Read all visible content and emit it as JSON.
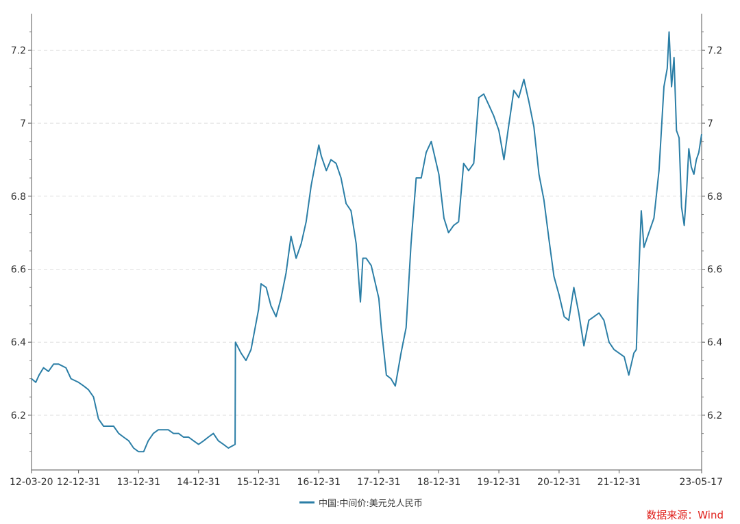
{
  "chart_data": {
    "type": "line",
    "ylim": [
      6.05,
      7.3
    ],
    "yticks": [
      6.2,
      6.4,
      6.6,
      6.8,
      7.0,
      7.2
    ],
    "ytick_labels": [
      "6.2",
      "6.4",
      "6.6",
      "6.8",
      "7",
      "7.2"
    ],
    "xlim": [
      "2012-03-20",
      "2023-05-17"
    ],
    "xticks": [
      "2012-03-20",
      "2012-12-31",
      "2013-12-31",
      "2014-12-31",
      "2015-12-31",
      "2016-12-31",
      "2017-12-31",
      "2018-12-31",
      "2019-12-31",
      "2020-12-31",
      "2021-12-31",
      "2023-05-17"
    ],
    "xtick_labels": [
      "12-03-20",
      "12-12-31",
      "13-12-31",
      "14-12-31",
      "15-12-31",
      "16-12-31",
      "17-12-31",
      "18-12-31",
      "19-12-31",
      "20-12-31",
      "21-12-31",
      "23-05-17"
    ],
    "grid": "horizontal-dashed",
    "legend_position": "bottom",
    "series": [
      {
        "name": "中国:中间价:美元兑人民币",
        "color": "#2b7ea6",
        "points": [
          [
            "2012-03-20",
            6.3
          ],
          [
            "2012-04-15",
            6.29
          ],
          [
            "2012-05-05",
            6.31
          ],
          [
            "2012-06-01",
            6.33
          ],
          [
            "2012-07-01",
            6.32
          ],
          [
            "2012-08-01",
            6.34
          ],
          [
            "2012-09-01",
            6.34
          ],
          [
            "2012-10-15",
            6.33
          ],
          [
            "2012-11-15",
            6.3
          ],
          [
            "2012-12-31",
            6.29
          ],
          [
            "2013-02-01",
            6.28
          ],
          [
            "2013-03-01",
            6.27
          ],
          [
            "2013-04-01",
            6.25
          ],
          [
            "2013-05-01",
            6.19
          ],
          [
            "2013-06-01",
            6.17
          ],
          [
            "2013-07-01",
            6.17
          ],
          [
            "2013-08-01",
            6.17
          ],
          [
            "2013-09-01",
            6.15
          ],
          [
            "2013-10-01",
            6.14
          ],
          [
            "2013-11-01",
            6.13
          ],
          [
            "2013-12-01",
            6.11
          ],
          [
            "2013-12-31",
            6.1
          ],
          [
            "2014-01-31",
            6.1
          ],
          [
            "2014-02-28",
            6.13
          ],
          [
            "2014-03-31",
            6.15
          ],
          [
            "2014-04-30",
            6.16
          ],
          [
            "2014-05-31",
            6.16
          ],
          [
            "2014-06-30",
            6.16
          ],
          [
            "2014-07-31",
            6.15
          ],
          [
            "2014-08-31",
            6.15
          ],
          [
            "2014-09-30",
            6.14
          ],
          [
            "2014-10-31",
            6.14
          ],
          [
            "2014-11-30",
            6.13
          ],
          [
            "2014-12-31",
            6.12
          ],
          [
            "2015-01-31",
            6.13
          ],
          [
            "2015-02-28",
            6.14
          ],
          [
            "2015-03-31",
            6.15
          ],
          [
            "2015-04-30",
            6.13
          ],
          [
            "2015-05-31",
            6.12
          ],
          [
            "2015-06-30",
            6.11
          ],
          [
            "2015-08-10",
            6.12
          ],
          [
            "2015-08-12",
            6.4
          ],
          [
            "2015-09-15",
            6.37
          ],
          [
            "2015-10-15",
            6.35
          ],
          [
            "2015-11-15",
            6.38
          ],
          [
            "2015-12-31",
            6.49
          ],
          [
            "2016-01-15",
            6.56
          ],
          [
            "2016-02-15",
            6.55
          ],
          [
            "2016-03-15",
            6.5
          ],
          [
            "2016-04-15",
            6.47
          ],
          [
            "2016-05-15",
            6.52
          ],
          [
            "2016-06-15",
            6.59
          ],
          [
            "2016-07-15",
            6.69
          ],
          [
            "2016-08-15",
            6.63
          ],
          [
            "2016-09-15",
            6.67
          ],
          [
            "2016-10-15",
            6.73
          ],
          [
            "2016-11-15",
            6.83
          ],
          [
            "2016-12-31",
            6.94
          ],
          [
            "2017-01-15",
            6.91
          ],
          [
            "2017-02-15",
            6.87
          ],
          [
            "2017-03-15",
            6.9
          ],
          [
            "2017-04-15",
            6.89
          ],
          [
            "2017-05-15",
            6.85
          ],
          [
            "2017-06-15",
            6.78
          ],
          [
            "2017-07-15",
            6.76
          ],
          [
            "2017-08-15",
            6.67
          ],
          [
            "2017-09-10",
            6.51
          ],
          [
            "2017-09-25",
            6.63
          ],
          [
            "2017-10-15",
            6.63
          ],
          [
            "2017-11-15",
            6.61
          ],
          [
            "2017-12-31",
            6.52
          ],
          [
            "2018-01-15",
            6.44
          ],
          [
            "2018-02-15",
            6.31
          ],
          [
            "2018-03-15",
            6.3
          ],
          [
            "2018-04-10",
            6.28
          ],
          [
            "2018-05-15",
            6.37
          ],
          [
            "2018-06-15",
            6.44
          ],
          [
            "2018-07-15",
            6.67
          ],
          [
            "2018-08-15",
            6.85
          ],
          [
            "2018-09-15",
            6.85
          ],
          [
            "2018-10-15",
            6.92
          ],
          [
            "2018-11-15",
            6.95
          ],
          [
            "2018-12-31",
            6.86
          ],
          [
            "2019-01-31",
            6.74
          ],
          [
            "2019-02-28",
            6.7
          ],
          [
            "2019-03-31",
            6.72
          ],
          [
            "2019-04-30",
            6.73
          ],
          [
            "2019-05-31",
            6.89
          ],
          [
            "2019-06-30",
            6.87
          ],
          [
            "2019-07-31",
            6.89
          ],
          [
            "2019-08-31",
            7.07
          ],
          [
            "2019-09-30",
            7.08
          ],
          [
            "2019-10-31",
            7.05
          ],
          [
            "2019-11-30",
            7.02
          ],
          [
            "2019-12-31",
            6.98
          ],
          [
            "2020-01-31",
            6.9
          ],
          [
            "2020-02-28",
            6.99
          ],
          [
            "2020-03-31",
            7.09
          ],
          [
            "2020-04-30",
            7.07
          ],
          [
            "2020-05-31",
            7.12
          ],
          [
            "2020-06-30",
            7.06
          ],
          [
            "2020-07-31",
            6.99
          ],
          [
            "2020-08-31",
            6.86
          ],
          [
            "2020-09-30",
            6.79
          ],
          [
            "2020-10-31",
            6.68
          ],
          [
            "2020-11-30",
            6.58
          ],
          [
            "2020-12-31",
            6.53
          ],
          [
            "2021-01-31",
            6.47
          ],
          [
            "2021-02-28",
            6.46
          ],
          [
            "2021-03-31",
            6.55
          ],
          [
            "2021-04-30",
            6.48
          ],
          [
            "2021-05-31",
            6.39
          ],
          [
            "2021-06-30",
            6.46
          ],
          [
            "2021-07-31",
            6.47
          ],
          [
            "2021-08-31",
            6.48
          ],
          [
            "2021-09-30",
            6.46
          ],
          [
            "2021-10-31",
            6.4
          ],
          [
            "2021-11-30",
            6.38
          ],
          [
            "2021-12-31",
            6.37
          ],
          [
            "2022-01-31",
            6.36
          ],
          [
            "2022-02-28",
            6.31
          ],
          [
            "2022-03-31",
            6.37
          ],
          [
            "2022-04-15",
            6.38
          ],
          [
            "2022-04-30",
            6.59
          ],
          [
            "2022-05-15",
            6.76
          ],
          [
            "2022-05-31",
            6.66
          ],
          [
            "2022-06-30",
            6.7
          ],
          [
            "2022-07-31",
            6.74
          ],
          [
            "2022-08-31",
            6.87
          ],
          [
            "2022-09-30",
            7.1
          ],
          [
            "2022-10-20",
            7.15
          ],
          [
            "2022-10-31",
            7.25
          ],
          [
            "2022-11-15",
            7.1
          ],
          [
            "2022-11-30",
            7.18
          ],
          [
            "2022-12-15",
            6.98
          ],
          [
            "2022-12-31",
            6.96
          ],
          [
            "2023-01-15",
            6.77
          ],
          [
            "2023-01-31",
            6.72
          ],
          [
            "2023-02-15",
            6.82
          ],
          [
            "2023-02-28",
            6.93
          ],
          [
            "2023-03-15",
            6.88
          ],
          [
            "2023-03-31",
            6.86
          ],
          [
            "2023-04-15",
            6.9
          ],
          [
            "2023-04-30",
            6.92
          ],
          [
            "2023-05-17",
            6.97
          ]
        ]
      }
    ]
  },
  "legend": {
    "label": "中国:中间价:美元兑人民币"
  },
  "source": {
    "label": "数据来源：Wind"
  }
}
